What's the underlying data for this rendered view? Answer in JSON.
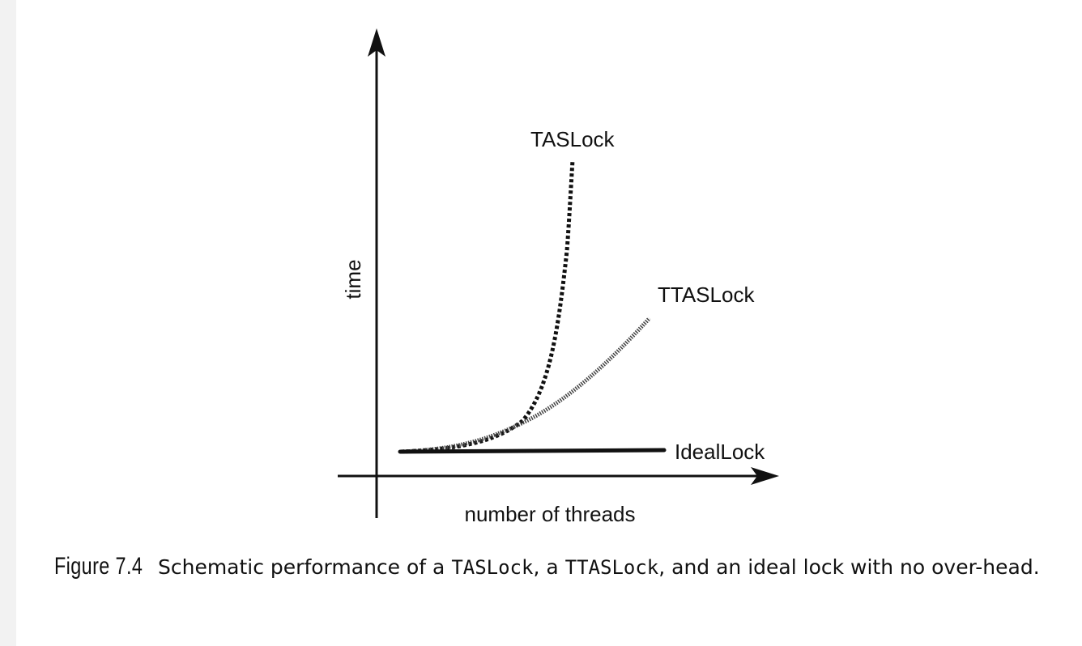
{
  "figure": {
    "curves": {
      "taslock": "TASLock",
      "ttaslock": "TTASLock",
      "ideallock": "IdealLock"
    },
    "axes": {
      "y_label": "time",
      "x_label": "number of threads"
    }
  },
  "caption": {
    "figure_number": "Figure 7.4",
    "text_1": "Schematic performance of a ",
    "code_1": "TASLock",
    "text_2": ", a ",
    "code_2": "TTASLock",
    "text_3": ", and an ideal lock with no over-head."
  },
  "colors": {
    "ink": "#111111",
    "background": "#ffffff",
    "left_strip": "#f2f2f2"
  }
}
